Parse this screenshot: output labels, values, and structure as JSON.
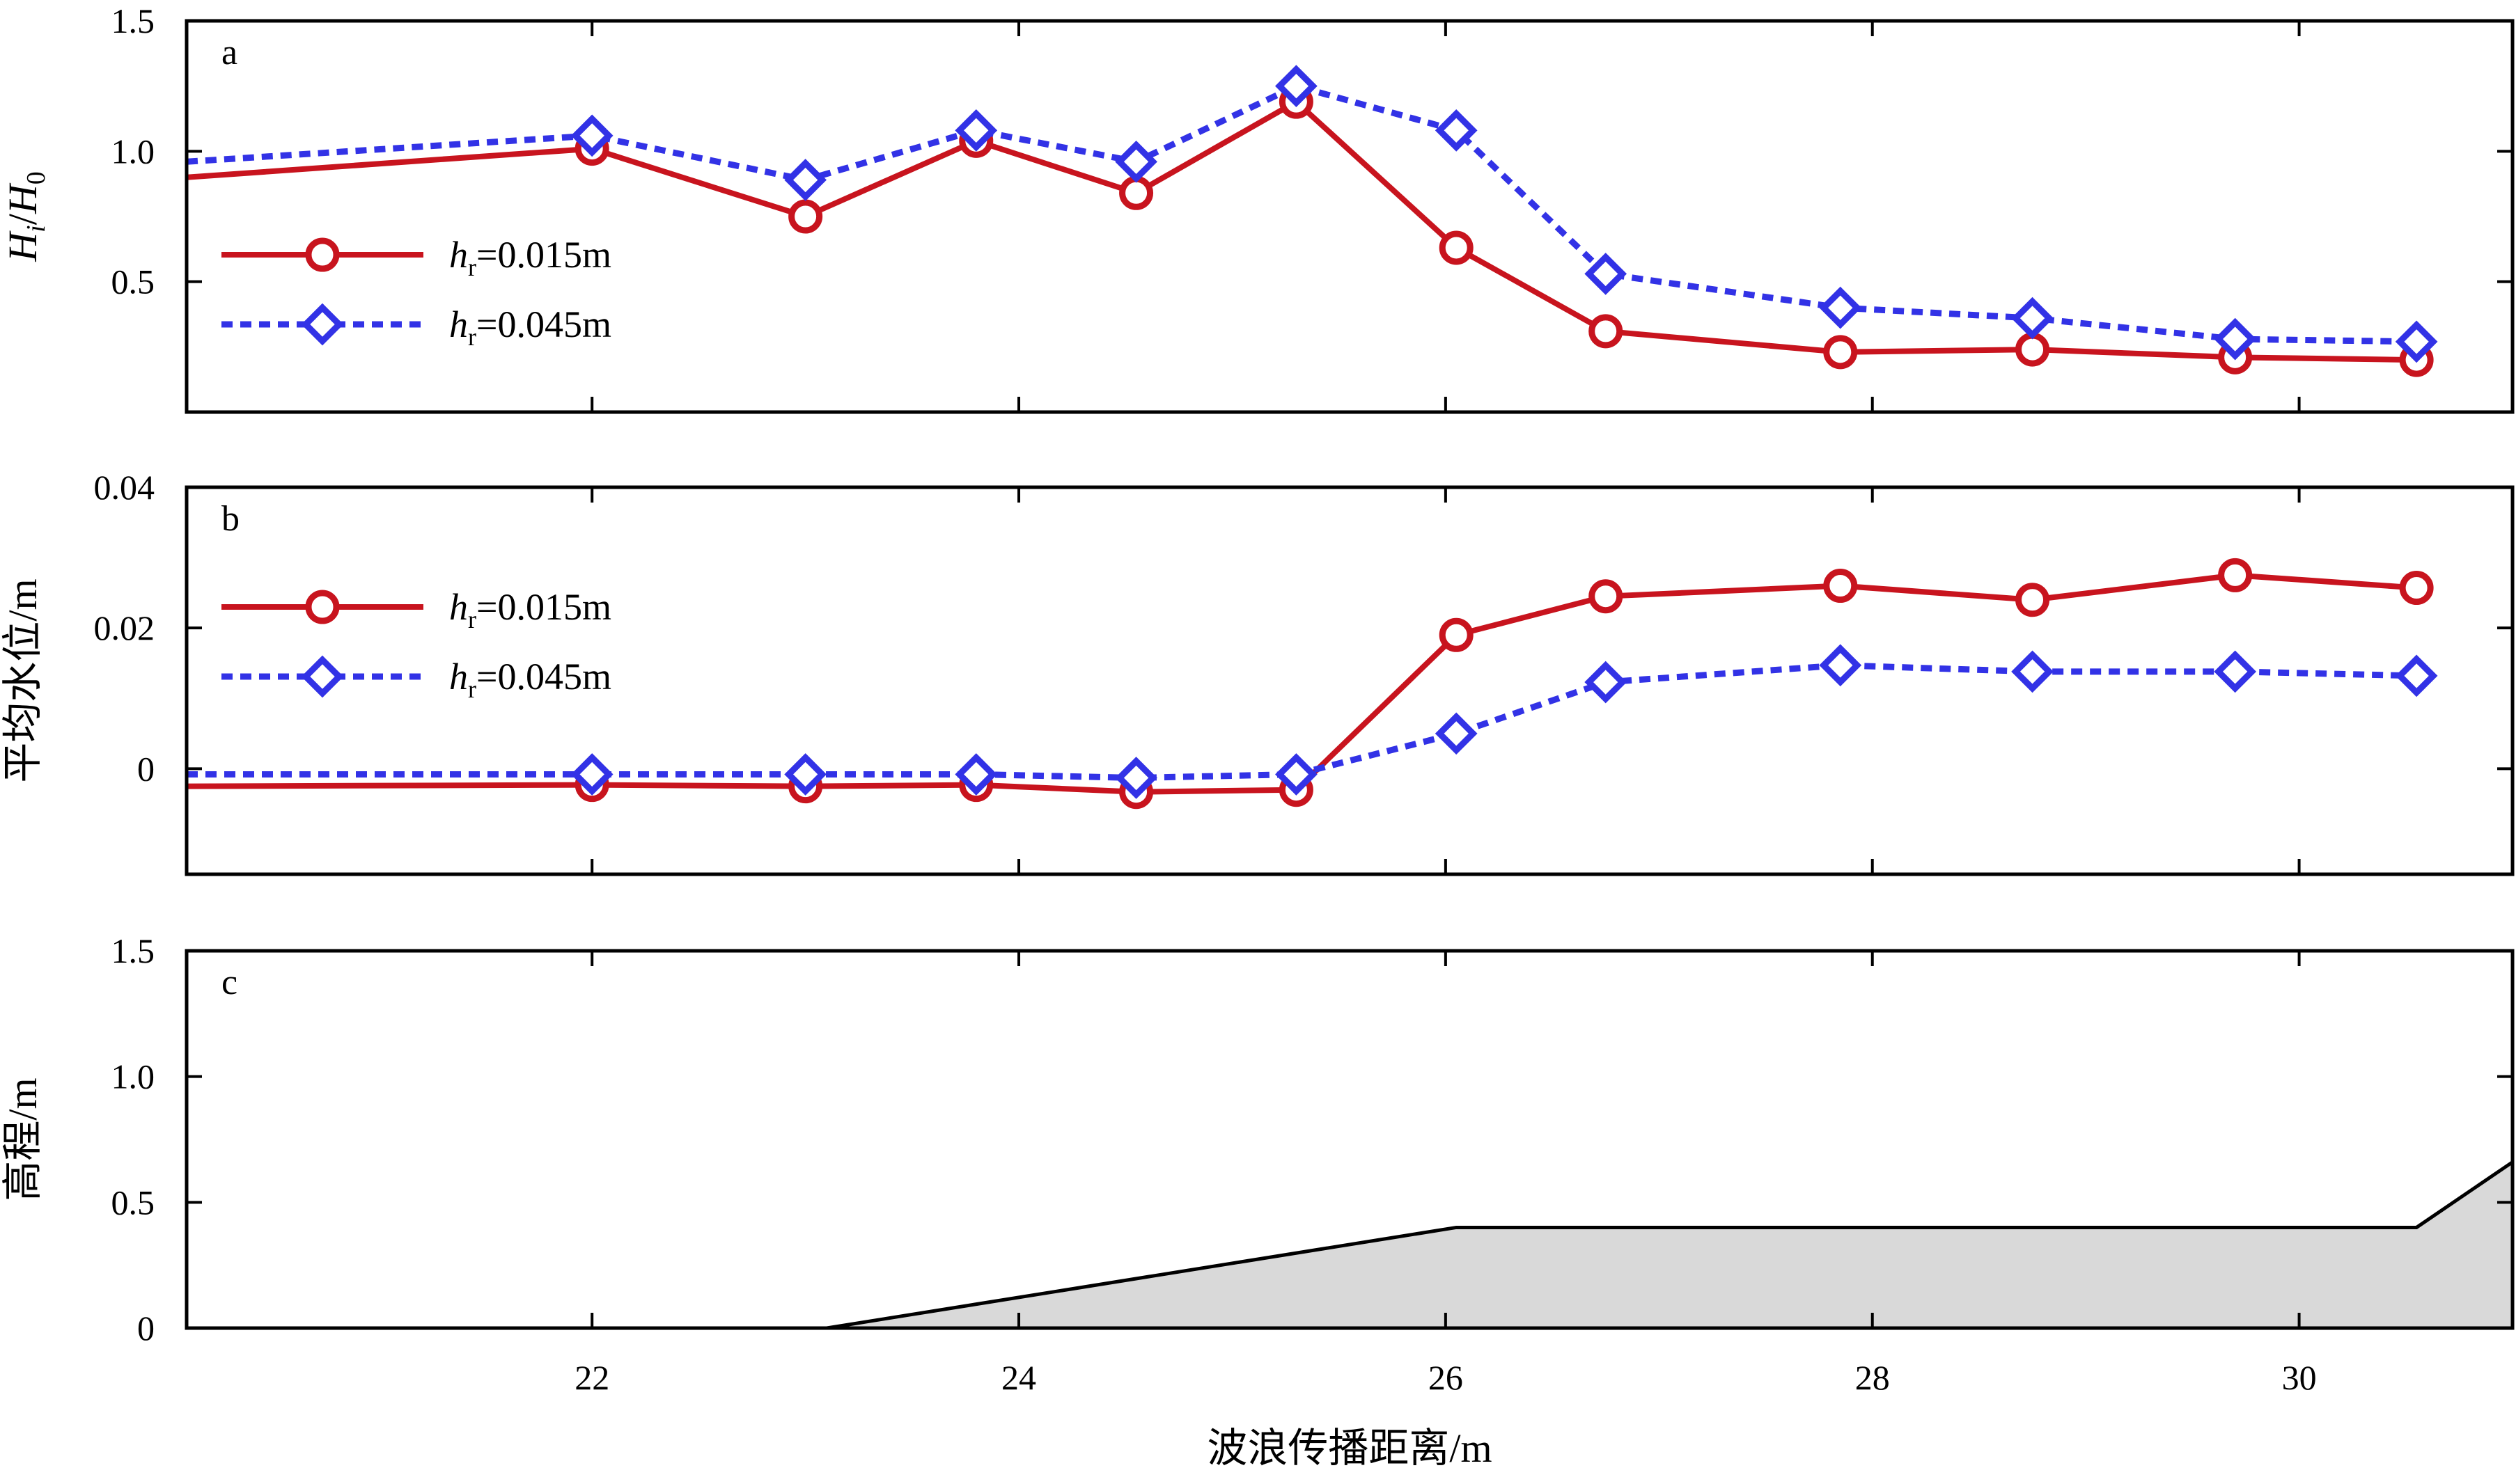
{
  "chart_data": [
    {
      "panel": "a",
      "type": "line",
      "xlabel": "",
      "ylabel_parts": [
        "H",
        "i",
        "/",
        "H",
        "0"
      ],
      "ylim": [
        0,
        1.5
      ],
      "yticks": [
        "0.5",
        "1.0",
        "1.5"
      ],
      "xlim": [
        20.1,
        31.0
      ],
      "xticks": [
        22,
        24,
        26,
        28,
        30
      ],
      "legend_position": "middle-left",
      "series": [
        {
          "name": "hr=0.015m",
          "legend_label": {
            "var": "h",
            "sub": "r",
            "rest": "=0.015m"
          },
          "color": "#c8141e",
          "line_style": "solid",
          "marker": "circle",
          "x": [
            20.1,
            22.0,
            23.0,
            23.8,
            24.55,
            25.3,
            26.05,
            26.75,
            27.85,
            28.75,
            29.7,
            30.55
          ],
          "values": [
            0.9,
            1.01,
            0.75,
            1.04,
            0.84,
            1.19,
            0.63,
            0.31,
            0.23,
            0.24,
            0.21,
            0.2
          ],
          "marker_from_index": 1
        },
        {
          "name": "hr=0.045m",
          "legend_label": {
            "var": "h",
            "sub": "r",
            "rest": "=0.045m"
          },
          "color": "#3232e6",
          "line_style": "dotted",
          "marker": "diamond",
          "x": [
            20.1,
            22.0,
            23.0,
            23.8,
            24.55,
            25.3,
            26.05,
            26.75,
            27.85,
            28.75,
            29.7,
            30.55
          ],
          "values": [
            0.96,
            1.06,
            0.89,
            1.08,
            0.96,
            1.25,
            1.08,
            0.53,
            0.4,
            0.36,
            0.28,
            0.27
          ],
          "marker_from_index": 1
        }
      ]
    },
    {
      "panel": "b",
      "type": "line",
      "xlabel": "",
      "ylabel": "平均水位/m",
      "ylim": [
        -0.015,
        0.04
      ],
      "yticks": [
        "0",
        "0.02",
        "0.04"
      ],
      "ytick_values": [
        0,
        0.02,
        0.04
      ],
      "xlim": [
        20.1,
        31.0
      ],
      "xticks": [
        22,
        24,
        26,
        28,
        30
      ],
      "legend_position": "top-left",
      "series": [
        {
          "name": "hr=0.015m",
          "legend_label": {
            "var": "h",
            "sub": "r",
            "rest": "=0.015m"
          },
          "color": "#c8141e",
          "line_style": "solid",
          "marker": "circle",
          "x": [
            20.1,
            22.0,
            23.0,
            23.8,
            24.55,
            25.3,
            26.05,
            26.75,
            27.85,
            28.75,
            29.7,
            30.55
          ],
          "values": [
            -0.0025,
            -0.0023,
            -0.0025,
            -0.0023,
            -0.0033,
            -0.003,
            0.019,
            0.0245,
            0.026,
            0.024,
            0.0275,
            0.0257
          ],
          "marker_from_index": 1
        },
        {
          "name": "hr=0.045m",
          "legend_label": {
            "var": "h",
            "sub": "r",
            "rest": "=0.045m"
          },
          "color": "#3232e6",
          "line_style": "dotted",
          "marker": "diamond",
          "x": [
            20.1,
            22.0,
            23.0,
            23.8,
            24.55,
            25.3,
            26.05,
            26.75,
            27.85,
            28.75,
            29.7,
            30.55
          ],
          "values": [
            -0.0008,
            -0.0008,
            -0.0008,
            -0.0008,
            -0.0013,
            -0.0008,
            0.005,
            0.0123,
            0.0147,
            0.0138,
            0.0138,
            0.0132
          ],
          "marker_from_index": 1
        }
      ]
    },
    {
      "panel": "c",
      "type": "area",
      "xlabel": "波浪传播距离/m",
      "ylabel": "高程/m",
      "ylim": [
        0,
        1.5
      ],
      "yticks": [
        "0",
        "0.5",
        "1.0",
        "1.5"
      ],
      "ytick_values": [
        0,
        0.5,
        1.0,
        1.5
      ],
      "xlim": [
        20.1,
        31.0
      ],
      "xticks": [
        22,
        24,
        26,
        28,
        30
      ],
      "xtick_labels": [
        "22",
        "24",
        "26",
        "28",
        "30"
      ],
      "fill_color": "#d9d9d9",
      "line_color": "#000000",
      "profile": {
        "x": [
          20.1,
          23.1,
          26.05,
          30.55,
          31.0
        ],
        "values": [
          0,
          0,
          0.4,
          0.4,
          0.66
        ]
      }
    }
  ]
}
